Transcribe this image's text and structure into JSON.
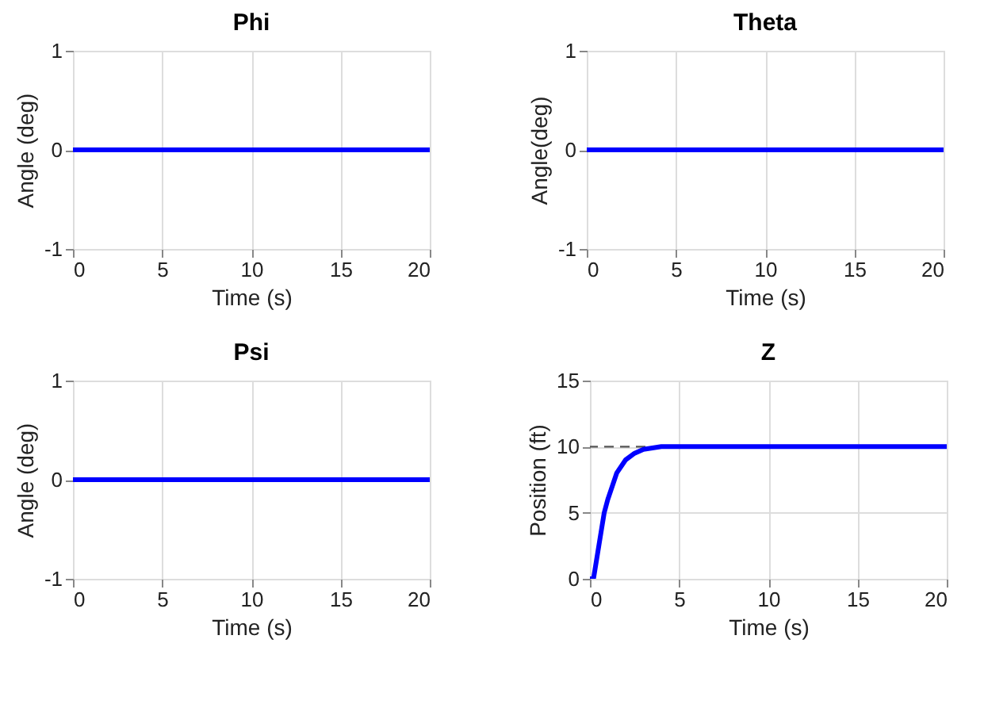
{
  "chart_data": [
    {
      "type": "line",
      "title": "Phi",
      "xlabel": "Time (s)",
      "ylabel": "Angle (deg)",
      "xlim": [
        0,
        20
      ],
      "ylim": [
        -1,
        1
      ],
      "xticks": [
        0,
        5,
        10,
        15,
        20
      ],
      "yticks": [
        -1,
        0,
        1
      ],
      "grid": true,
      "x": [
        0,
        20
      ],
      "series": [
        {
          "color": "#0000ff",
          "values": [
            0,
            0
          ]
        }
      ]
    },
    {
      "type": "line",
      "title": "Theta",
      "xlabel": "Time (s)",
      "ylabel": "Angle(deg)",
      "xlim": [
        0,
        20
      ],
      "ylim": [
        -1,
        1
      ],
      "xticks": [
        0,
        5,
        10,
        15,
        20
      ],
      "yticks": [
        -1,
        0,
        1
      ],
      "grid": true,
      "x": [
        0,
        20
      ],
      "series": [
        {
          "color": "#0000ff",
          "values": [
            0,
            0
          ]
        }
      ]
    },
    {
      "type": "line",
      "title": "Psi",
      "xlabel": "Time (s)",
      "ylabel": "Angle (deg)",
      "xlim": [
        0,
        20
      ],
      "ylim": [
        -1,
        1
      ],
      "xticks": [
        0,
        5,
        10,
        15,
        20
      ],
      "yticks": [
        -1,
        0,
        1
      ],
      "grid": true,
      "x": [
        0,
        20
      ],
      "series": [
        {
          "color": "#0000ff",
          "values": [
            0,
            0
          ]
        }
      ]
    },
    {
      "type": "line",
      "title": "Z",
      "xlabel": "Time (s)",
      "ylabel": "Position (ft)",
      "xlim": [
        0,
        20
      ],
      "ylim": [
        0,
        15
      ],
      "xticks": [
        0,
        5,
        10,
        15,
        20
      ],
      "yticks": [
        0,
        5,
        10,
        15
      ],
      "grid": true,
      "x": [
        0,
        0.2,
        0.5,
        0.8,
        1,
        1.5,
        2,
        2.5,
        3,
        3.5,
        4,
        5,
        10,
        15,
        20
      ],
      "series": [
        {
          "color": "#0000ff",
          "values": [
            0,
            0,
            2.5,
            5,
            6,
            8,
            9,
            9.5,
            9.8,
            9.9,
            10,
            10,
            10,
            10,
            10
          ]
        }
      ],
      "ref_lines": [
        {
          "axis": "y",
          "value": 10,
          "color": "#555555",
          "line_style": "dashed"
        }
      ]
    }
  ]
}
